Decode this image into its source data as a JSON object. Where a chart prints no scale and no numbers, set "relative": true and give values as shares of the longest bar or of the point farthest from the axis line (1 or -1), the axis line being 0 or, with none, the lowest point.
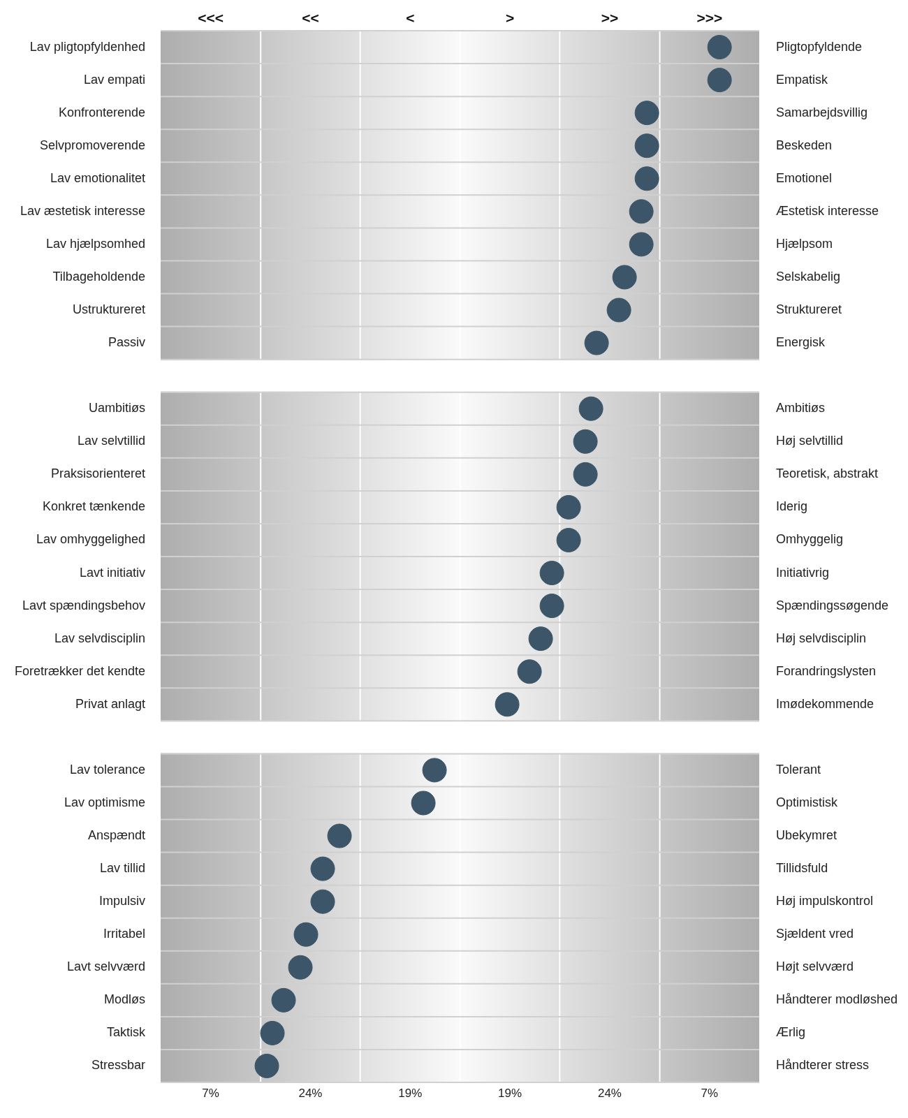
{
  "chart_data": {
    "type": "scatter",
    "orientation": "horizontal",
    "relative": true,
    "grid": true,
    "marker": "circle",
    "categories": [
      "Lav pligtopfyldenhed",
      "Lav empati",
      "Konfronterende",
      "Selvpromoverende",
      "Lav emotionalitet",
      "Lav æstetisk interesse",
      "Lav hjælpsomhed",
      "Tilbageholdende",
      "Ustruktureret",
      "Passiv",
      null,
      "Uambitiøs",
      "Lav selvtillid",
      "Praksisorienteret",
      "Konkret tænkende",
      "Lav omhyggelighed",
      "Lavt initiativ",
      "Lavt spændingsbehov",
      "Lav selvdisciplin",
      "Foretrækker det kendte",
      "Privat anlagt",
      null,
      "Lav tolerance",
      "Lav optimisme",
      "Anspændt",
      "Lav tillid",
      "Impulsiv",
      "Irritabel",
      "Lavt selvværd",
      "Modløs",
      "Taktisk",
      "Stressbar"
    ],
    "y2_categories": [
      "Pligtopfyldende",
      "Empatisk",
      "Samarbejdsvillig",
      "Beskeden",
      "Emotionel",
      "Æstetisk interesse",
      "Hjælpsom",
      "Selskabelig",
      "Struktureret",
      "Energisk",
      null,
      "Ambitiøs",
      "Høj selvtillid",
      "Teoretisk, abstrakt",
      "Iderig",
      "Omhyggelig",
      "Initiativrig",
      "Spændingssøgende",
      "Høj selvdisciplin",
      "Forandringslysten",
      "Imødekommende",
      null,
      "Tolerant",
      "Optimistisk",
      "Ubekymret",
      "Tillidsfuld",
      "Høj impulskontrol",
      "Sjældent vred",
      "Højt selvværd",
      "Håndterer modløshed",
      "Ærlig",
      "Håndterer stress"
    ],
    "series": [
      {
        "color": "#3c5568",
        "values": [
          1,
          1,
          0.87,
          0.87,
          0.87,
          0.86,
          0.86,
          0.83,
          0.82,
          0.78,
          null,
          0.77,
          0.76,
          0.76,
          0.73,
          0.73,
          0.7,
          0.7,
          0.68,
          0.66,
          0.62,
          null,
          0.49,
          0.47,
          0.32,
          0.29,
          0.29,
          0.26,
          0.25,
          0.22,
          0.2,
          0.19
        ]
      }
    ],
    "bands": [
      {
        "axis": "x",
        "from": 0,
        "to": 0.179,
        "label": "<<<"
      },
      {
        "axis": "x",
        "from": 0.179,
        "to": 0.357,
        "label": "<<"
      },
      {
        "axis": "x",
        "from": 0.357,
        "to": 0.536,
        "label": "<"
      },
      {
        "axis": "x",
        "from": 0.536,
        "to": 0.714,
        "label": ">"
      },
      {
        "axis": "x",
        "from": 0.714,
        "to": 0.893,
        "label": ">>"
      },
      {
        "axis": "x",
        "from": 0.893,
        "to": 1.071,
        "label": ">>>"
      }
    ],
    "annotations": [
      "7%",
      "24%",
      "19%",
      "19%",
      "24%",
      "7%"
    ]
  }
}
